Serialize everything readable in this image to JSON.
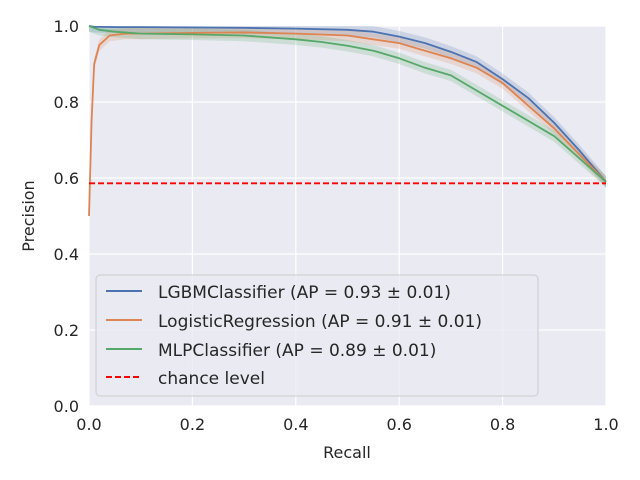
{
  "chart_data": {
    "type": "line",
    "xlabel": "Recall",
    "ylabel": "Precision",
    "xlim": [
      0.0,
      1.0
    ],
    "ylim": [
      0.0,
      1.0
    ],
    "xticks": [
      "0.0",
      "0.2",
      "0.4",
      "0.6",
      "0.8",
      "1.0"
    ],
    "yticks": [
      "0.0",
      "0.2",
      "0.4",
      "0.6",
      "0.8",
      "1.0"
    ],
    "grid": true,
    "legend_position": "lower-left",
    "series": [
      {
        "name": "LGBMClassifier (AP = 0.93 ± 0.01)",
        "color": "#4c72b0",
        "band": 0.015,
        "x": [
          0.0,
          0.01,
          0.05,
          0.1,
          0.2,
          0.3,
          0.4,
          0.5,
          0.55,
          0.6,
          0.65,
          0.7,
          0.75,
          0.8,
          0.85,
          0.9,
          0.95,
          1.0
        ],
        "y": [
          1.0,
          0.998,
          0.997,
          0.997,
          0.996,
          0.995,
          0.993,
          0.99,
          0.985,
          0.972,
          0.955,
          0.932,
          0.905,
          0.86,
          0.81,
          0.745,
          0.67,
          0.59
        ]
      },
      {
        "name": "LogisticRegression (AP = 0.91 ± 0.01)",
        "color": "#dd8452",
        "band": 0.015,
        "x": [
          0.0,
          0.005,
          0.01,
          0.02,
          0.04,
          0.07,
          0.1,
          0.2,
          0.3,
          0.4,
          0.5,
          0.55,
          0.6,
          0.65,
          0.7,
          0.75,
          0.8,
          0.85,
          0.9,
          0.95,
          1.0
        ],
        "y": [
          0.5,
          0.75,
          0.9,
          0.95,
          0.975,
          0.98,
          0.98,
          0.982,
          0.983,
          0.98,
          0.975,
          0.965,
          0.955,
          0.935,
          0.915,
          0.89,
          0.85,
          0.79,
          0.73,
          0.66,
          0.59
        ]
      },
      {
        "name": "MLPClassifier (AP = 0.89 ± 0.01)",
        "color": "#55a868",
        "band": 0.015,
        "x": [
          0.0,
          0.02,
          0.05,
          0.1,
          0.2,
          0.3,
          0.4,
          0.45,
          0.5,
          0.55,
          0.6,
          0.65,
          0.7,
          0.75,
          0.8,
          0.85,
          0.9,
          0.95,
          1.0
        ],
        "y": [
          1.0,
          0.99,
          0.985,
          0.98,
          0.978,
          0.975,
          0.965,
          0.958,
          0.948,
          0.935,
          0.915,
          0.89,
          0.87,
          0.83,
          0.79,
          0.75,
          0.71,
          0.65,
          0.59
        ]
      }
    ],
    "reference_line": {
      "name": "chance level",
      "color": "#ff0000",
      "y": 0.586
    }
  }
}
